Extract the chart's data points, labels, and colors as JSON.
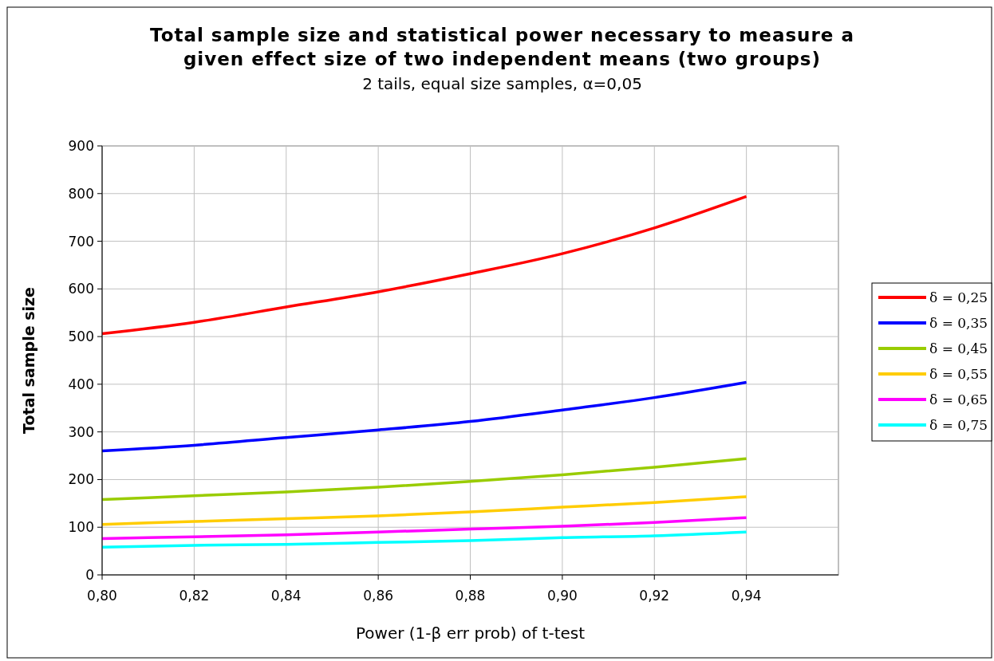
{
  "chart_data": {
    "type": "line",
    "title": "Total sample size and statistical power necessary to measure a\ngiven effect size of two independent means (two groups)",
    "subtitle": "2 tails, equal size samples, α=0,05",
    "xlabel": "Power (1-β err prob) of t-test",
    "ylabel": "Total sample size",
    "x": [
      0.8,
      0.82,
      0.84,
      0.86,
      0.88,
      0.9,
      0.92,
      0.94
    ],
    "series": [
      {
        "name": "δ = 0,25",
        "color": "#ff0000",
        "values": [
          506,
          530,
          562,
          594,
          632,
          674,
          728,
          794
        ]
      },
      {
        "name": "δ = 0,35",
        "color": "#0000ff",
        "values": [
          260,
          272,
          288,
          304,
          322,
          346,
          372,
          404
        ]
      },
      {
        "name": "δ = 0,45",
        "color": "#99cc00",
        "values": [
          158,
          166,
          174,
          184,
          196,
          210,
          226,
          244
        ]
      },
      {
        "name": "δ = 0,55",
        "color": "#ffcc00",
        "values": [
          106,
          112,
          118,
          124,
          132,
          142,
          152,
          164
        ]
      },
      {
        "name": "δ = 0,65",
        "color": "#ff00ff",
        "values": [
          76,
          80,
          84,
          90,
          96,
          102,
          110,
          120
        ]
      },
      {
        "name": "δ = 0,75",
        "color": "#00ffff",
        "values": [
          58,
          62,
          64,
          68,
          72,
          78,
          82,
          90
        ]
      }
    ],
    "xlim": [
      0.8,
      0.96
    ],
    "xticks": [
      {
        "value": 0.8,
        "label": "0,80"
      },
      {
        "value": 0.82,
        "label": "0,82"
      },
      {
        "value": 0.84,
        "label": "0,84"
      },
      {
        "value": 0.86,
        "label": "0,86"
      },
      {
        "value": 0.88,
        "label": "0,88"
      },
      {
        "value": 0.9,
        "label": "0,90"
      },
      {
        "value": 0.92,
        "label": "0,92"
      },
      {
        "value": 0.94,
        "label": "0,94"
      }
    ],
    "ylim": [
      0,
      900
    ],
    "yticks": [
      0,
      100,
      200,
      300,
      400,
      500,
      600,
      700,
      800,
      900
    ],
    "grid": true,
    "legend": "right",
    "marker": "none",
    "line_style": "solid"
  }
}
